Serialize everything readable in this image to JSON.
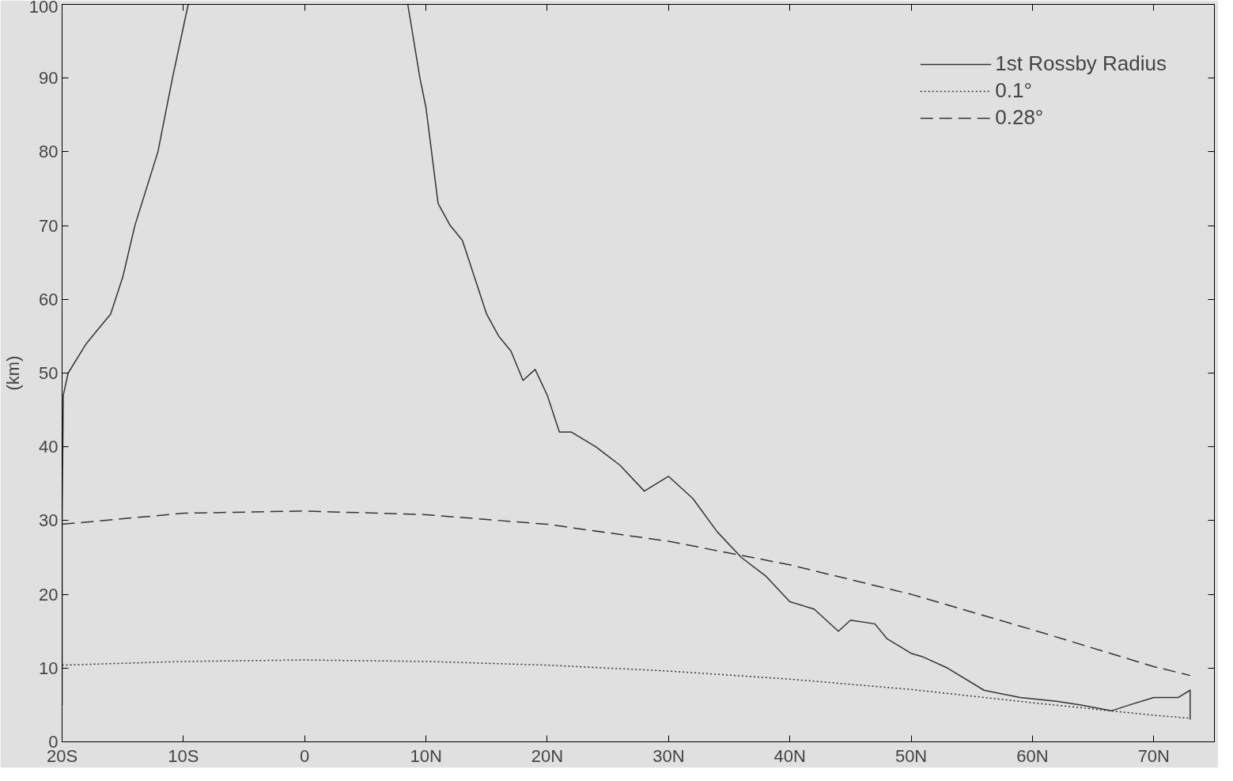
{
  "chart_data": {
    "type": "line",
    "ylabel": "(km)",
    "xlim": [
      -20,
      75
    ],
    "ylim": [
      0,
      100
    ],
    "xticks": [
      {
        "value": -20,
        "label": "20S"
      },
      {
        "value": -10,
        "label": "10S"
      },
      0,
      {
        "value": 10,
        "label": "10N"
      },
      {
        "value": 20,
        "label": "20N"
      },
      {
        "value": 30,
        "label": "30N"
      },
      {
        "value": 40,
        "label": "40N"
      },
      {
        "value": 50,
        "label": "50N"
      },
      {
        "value": 60,
        "label": "60N"
      },
      {
        "value": 70,
        "label": "70N"
      }
    ],
    "yticks": [
      0,
      10,
      20,
      30,
      40,
      50,
      60,
      70,
      80,
      90,
      100
    ],
    "legend": "top right",
    "series": [
      {
        "name": "1st Rossby Radius",
        "color": "#333333",
        "line_style": "solid",
        "x": [
          -20,
          -20,
          -19.9,
          -19.5,
          -18,
          -17,
          -16,
          -15,
          -14,
          -12.1,
          -10.9,
          -9.6,
          null,
          8.5,
          9.5,
          10,
          11,
          12,
          13,
          14,
          15,
          16,
          17,
          18,
          19,
          20,
          21,
          22,
          24,
          26,
          28,
          30,
          32,
          34,
          36,
          38,
          40,
          42,
          44,
          45,
          47,
          48,
          50,
          51,
          53,
          56,
          59,
          62,
          64,
          66.5,
          68,
          70,
          72,
          73,
          73
        ],
        "values": [
          5,
          30,
          47,
          50,
          54,
          56,
          58,
          63,
          70,
          80,
          90,
          100,
          null,
          100,
          90,
          86,
          73,
          70,
          68,
          63,
          58,
          55,
          53,
          49,
          50.5,
          47,
          42,
          42,
          40,
          37.5,
          34,
          36,
          33,
          28.5,
          25,
          22.5,
          19,
          18,
          15,
          16.5,
          16,
          14,
          12,
          11.5,
          10,
          7,
          6,
          5.5,
          5,
          4.2,
          5,
          6,
          6,
          7,
          3
        ]
      },
      {
        "name": "0.1°",
        "color": "#333333",
        "line_style": "dotted",
        "x": [
          -20,
          -10,
          0,
          10,
          20,
          30,
          40,
          50,
          60,
          70,
          73
        ],
        "values": [
          10.4,
          10.9,
          11.1,
          10.9,
          10.4,
          9.6,
          8.5,
          7.1,
          5.3,
          3.6,
          3.2
        ]
      },
      {
        "name": "0.28°",
        "color": "#333333",
        "line_style": "dashed",
        "x": [
          -20,
          -10,
          0,
          10,
          20,
          30,
          40,
          50,
          60,
          70,
          73
        ],
        "values": [
          29.5,
          31,
          31.3,
          30.8,
          29.5,
          27.2,
          24,
          20,
          15.2,
          10.2,
          9
        ]
      }
    ]
  }
}
